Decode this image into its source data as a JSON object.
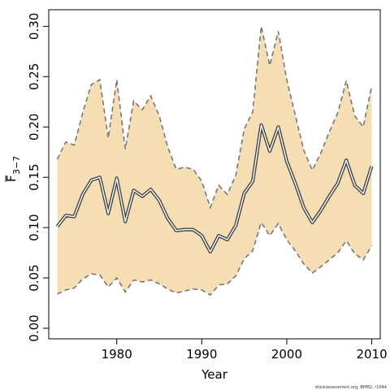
{
  "chart_data": {
    "type": "area",
    "xlabel": "Year",
    "ylabel_main": "F",
    "ylabel_sub": "3−7",
    "xlim": [
      1972,
      2011
    ],
    "ylim": [
      0,
      0.31
    ],
    "xticks": [
      1980,
      1990,
      2000,
      2010
    ],
    "xtick_labels": [
      "1980",
      "1990",
      "2000",
      "2010"
    ],
    "yticks": [
      0,
      0.05,
      0.1,
      0.15,
      0.2,
      0.25,
      0.3
    ],
    "ytick_labels": [
      "0.00",
      "0.05",
      "0.10",
      "0.15",
      "0.20",
      "0.25",
      "0.30"
    ],
    "grid": false,
    "colors": {
      "band_fill": "#f5deb3",
      "bound_line": "#777777",
      "estimate_line": "#444444",
      "estimate_halo": "#ffffff",
      "axis": "#000000"
    },
    "years": [
      1973,
      1974,
      1975,
      1976,
      1977,
      1978,
      1979,
      1980,
      1981,
      1982,
      1983,
      1984,
      1985,
      1986,
      1987,
      1988,
      1989,
      1990,
      1991,
      1992,
      1993,
      1994,
      1995,
      1996,
      1997,
      1998,
      1999,
      2000,
      2001,
      2002,
      2003,
      2004,
      2005,
      2006,
      2007,
      2008,
      2009,
      2010
    ],
    "series": [
      {
        "role": "upper",
        "values": [
          0.168,
          0.185,
          0.182,
          0.214,
          0.242,
          0.247,
          0.189,
          0.247,
          0.178,
          0.226,
          0.217,
          0.231,
          0.211,
          0.18,
          0.158,
          0.16,
          0.158,
          0.146,
          0.12,
          0.142,
          0.133,
          0.152,
          0.198,
          0.215,
          0.3,
          0.261,
          0.295,
          0.247,
          0.212,
          0.177,
          0.157,
          0.174,
          0.195,
          0.214,
          0.246,
          0.211,
          0.2,
          0.241
        ]
      },
      {
        "role": "lower",
        "values": [
          0.034,
          0.038,
          0.04,
          0.049,
          0.054,
          0.053,
          0.041,
          0.05,
          0.036,
          0.048,
          0.046,
          0.048,
          0.044,
          0.039,
          0.035,
          0.037,
          0.039,
          0.038,
          0.033,
          0.043,
          0.044,
          0.052,
          0.069,
          0.077,
          0.105,
          0.092,
          0.104,
          0.088,
          0.077,
          0.064,
          0.055,
          0.061,
          0.068,
          0.075,
          0.087,
          0.074,
          0.068,
          0.082
        ]
      },
      {
        "role": "estimate",
        "values": [
          0.101,
          0.112,
          0.111,
          0.133,
          0.147,
          0.15,
          0.114,
          0.149,
          0.106,
          0.137,
          0.131,
          0.138,
          0.127,
          0.109,
          0.097,
          0.098,
          0.098,
          0.092,
          0.076,
          0.092,
          0.088,
          0.102,
          0.134,
          0.146,
          0.202,
          0.176,
          0.2,
          0.166,
          0.144,
          0.12,
          0.105,
          0.117,
          0.131,
          0.144,
          0.167,
          0.142,
          0.134,
          0.161
        ]
      }
    ],
    "credit": "stockassessment.org, BHM2, r1044"
  }
}
